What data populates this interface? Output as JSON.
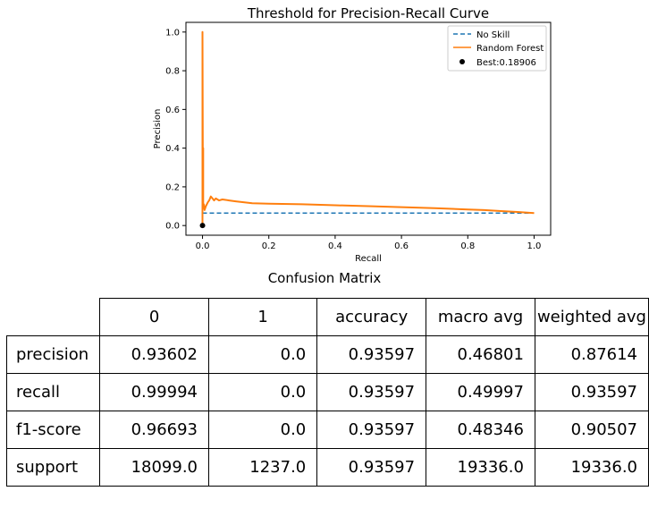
{
  "chart_data": {
    "type": "line",
    "title": "Threshold for Precision-Recall Curve",
    "xlabel": "Recall",
    "ylabel": "Precision",
    "xlim": [
      -0.05,
      1.05
    ],
    "ylim": [
      -0.05,
      1.05
    ],
    "xticks": [
      0.0,
      0.2,
      0.4,
      0.6,
      0.8,
      1.0
    ],
    "yticks": [
      0.0,
      0.2,
      0.4,
      0.6,
      0.8,
      1.0
    ],
    "grid": false,
    "legend_position": "top-right",
    "legend": [
      "No Skill",
      "Random Forest",
      "Best:0.18906"
    ],
    "series": [
      {
        "name": "No Skill",
        "style": "dashed",
        "color": "#1f77b4",
        "x": [
          0,
          1
        ],
        "y": [
          0.064,
          0.064
        ]
      },
      {
        "name": "Random Forest",
        "style": "solid",
        "color": "#ff7f0e",
        "x": [
          0.0,
          0.0,
          0.001,
          0.001,
          0.002,
          0.002,
          0.003,
          0.004,
          0.006,
          0.01,
          0.013,
          0.016,
          0.02,
          0.025,
          0.03,
          0.035,
          0.04,
          0.05,
          0.06,
          0.08,
          0.1,
          0.15,
          0.2,
          0.3,
          0.4,
          0.5,
          0.6,
          0.7,
          0.8,
          0.85,
          0.9,
          0.95,
          1.0
        ],
        "y": [
          0.0,
          1.0,
          0.3,
          0.12,
          0.4,
          0.1,
          0.09,
          0.11,
          0.08,
          0.1,
          0.11,
          0.12,
          0.13,
          0.15,
          0.14,
          0.13,
          0.14,
          0.13,
          0.135,
          0.13,
          0.125,
          0.115,
          0.113,
          0.11,
          0.105,
          0.1,
          0.095,
          0.09,
          0.083,
          0.08,
          0.075,
          0.07,
          0.064
        ]
      }
    ],
    "points": [
      {
        "name": "Best:0.18906",
        "x": 0.0,
        "y": 0.0,
        "color": "#000000"
      }
    ]
  },
  "confusion_matrix": {
    "title": "Confusion Matrix",
    "columns": [
      "0",
      "1",
      "accuracy",
      "macro avg",
      "weighted avg"
    ],
    "rows": [
      {
        "label": "precision",
        "values": [
          "0.93602",
          "0.0",
          "0.93597",
          "0.46801",
          "0.87614"
        ]
      },
      {
        "label": "recall",
        "values": [
          "0.99994",
          "0.0",
          "0.93597",
          "0.49997",
          "0.93597"
        ]
      },
      {
        "label": "f1-score",
        "values": [
          "0.96693",
          "0.0",
          "0.93597",
          "0.48346",
          "0.90507"
        ]
      },
      {
        "label": "support",
        "values": [
          "18099.0",
          "1237.0",
          "0.93597",
          "19336.0",
          "19336.0"
        ]
      }
    ]
  }
}
